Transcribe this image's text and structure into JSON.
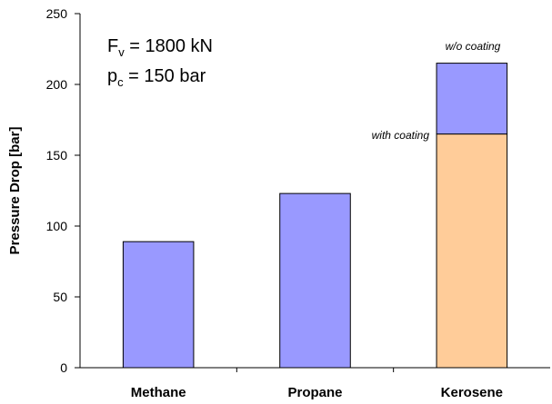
{
  "colors": {
    "bar_blue": "#9999ff",
    "bar_orange": "#ffcc99",
    "axis": "#000000",
    "bar_stroke": "#000000"
  },
  "chart_data": {
    "type": "bar",
    "stacked": true,
    "categories": [
      "Methane",
      "Propane",
      "Kerosene"
    ],
    "series": [
      {
        "name": "with coating",
        "color_key": "bar_orange",
        "values": [
          null,
          null,
          165
        ]
      },
      {
        "name": "w/o coating",
        "color_key": "bar_blue",
        "values": [
          89,
          123,
          50
        ]
      }
    ],
    "total_values": [
      89,
      123,
      215
    ],
    "ylabel": "Pressure Drop [bar]",
    "xlabel": "",
    "ylim": [
      0,
      250
    ],
    "yticks": [
      "0",
      "50",
      "100",
      "150",
      "200",
      "250"
    ],
    "grid": false,
    "legend": "none",
    "annotations": {
      "fv": {
        "base": "F",
        "sub": "v",
        "rest": " = 1800 kN"
      },
      "pc": {
        "base": "p",
        "sub": "c",
        "rest": " = 150 bar"
      }
    }
  }
}
